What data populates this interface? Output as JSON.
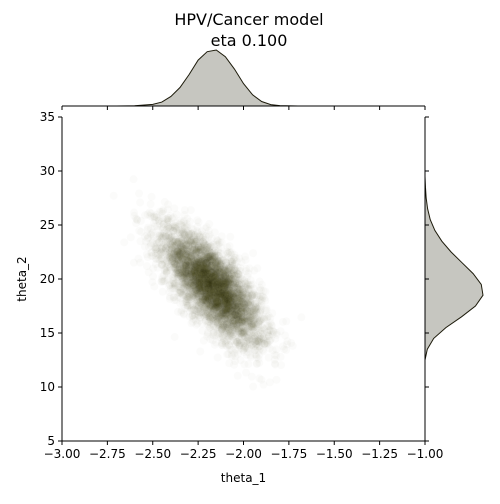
{
  "chart_data": {
    "type": "scatter",
    "title_lines": [
      "HPV/Cancer model",
      "eta 0.100"
    ],
    "xlabel": "theta_1",
    "ylabel": "theta_2",
    "xlim": [
      -3.0,
      -1.0
    ],
    "ylim": [
      5,
      35
    ],
    "xticks": [
      -3.0,
      -2.75,
      -2.5,
      -2.25,
      -2.0,
      -1.75,
      -1.5,
      -1.25,
      -1.0
    ],
    "xtick_labels": [
      "−3.00",
      "−2.75",
      "−2.50",
      "−2.25",
      "−2.00",
      "−1.75",
      "−1.50",
      "−1.25",
      "−1.00"
    ],
    "yticks": [
      5,
      10,
      15,
      20,
      25,
      30,
      35
    ],
    "ytick_labels": [
      "5",
      "10",
      "15",
      "20",
      "25",
      "30",
      "35"
    ],
    "grid": false,
    "colors": {
      "points": "#1c1a0a",
      "kde_fill": "#c6c6c0",
      "kde_line": "#1c1a0a"
    },
    "scatter": {
      "mean": [
        -2.17,
        19.3
      ],
      "std": [
        0.135,
        2.6
      ],
      "correlation": -0.72,
      "n_points": 5000,
      "opacity": 0.02
    },
    "marginal_x": {
      "x": [
        -2.7,
        -2.6,
        -2.5,
        -2.45,
        -2.4,
        -2.35,
        -2.3,
        -2.25,
        -2.2,
        -2.15,
        -2.1,
        -2.05,
        -2.0,
        -1.95,
        -1.9,
        -1.85,
        -1.8,
        -1.7
      ],
      "density": [
        0.0,
        0.005,
        0.03,
        0.07,
        0.17,
        0.33,
        0.56,
        0.82,
        0.97,
        1.0,
        0.88,
        0.66,
        0.4,
        0.2,
        0.08,
        0.025,
        0.006,
        0.0
      ]
    },
    "marginal_y": {
      "y": [
        12.5,
        13.5,
        14.5,
        15.5,
        16.5,
        17.5,
        18.5,
        19.5,
        20.5,
        21.5,
        22.5,
        23.5,
        24.5,
        25.5,
        26.5,
        27.5,
        28.5,
        29.5
      ],
      "density": [
        0.0,
        0.04,
        0.15,
        0.36,
        0.63,
        0.87,
        1.0,
        0.97,
        0.83,
        0.64,
        0.45,
        0.29,
        0.17,
        0.09,
        0.045,
        0.02,
        0.008,
        0.0
      ]
    }
  }
}
